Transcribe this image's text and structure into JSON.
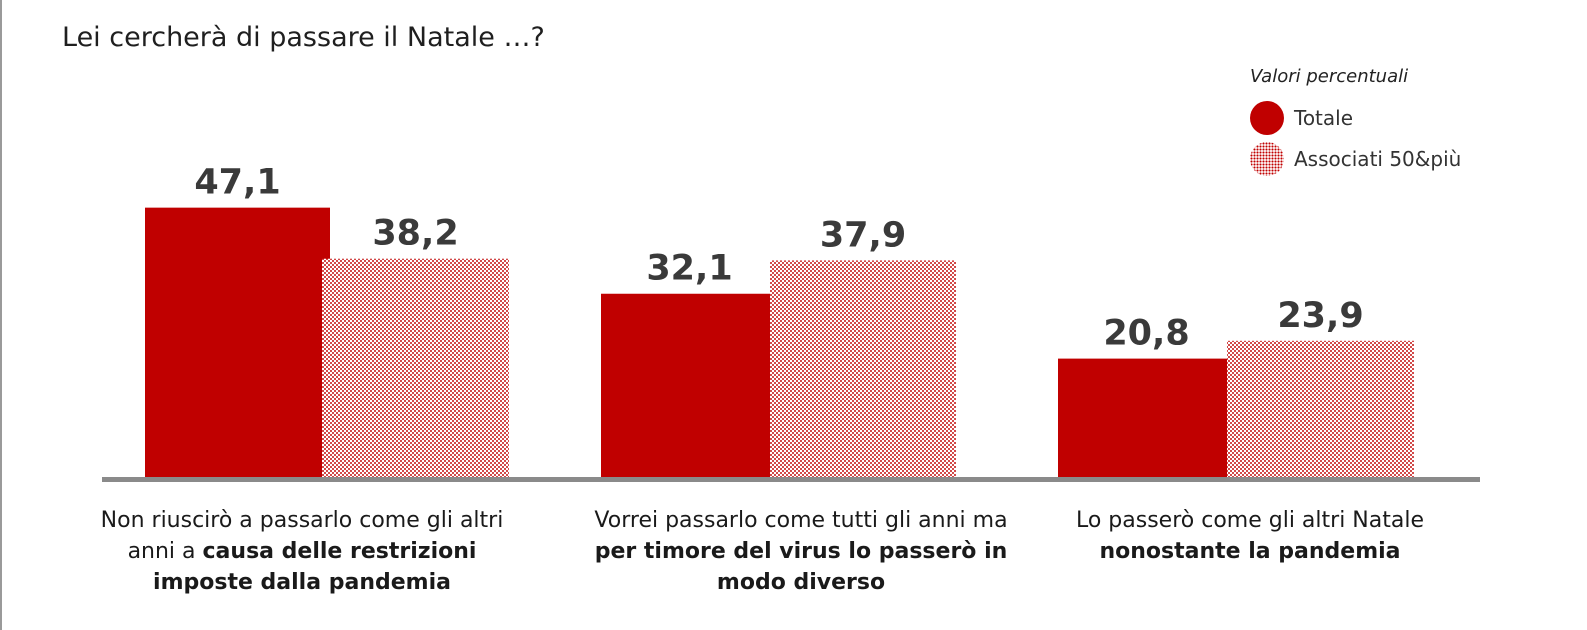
{
  "title": "Lei cercherà di passare il Natale …?",
  "legend": {
    "caption": "Valori percentuali",
    "items": [
      {
        "label": "Totale",
        "color": "#c00000",
        "style": "solid"
      },
      {
        "label": "Associati 50&più",
        "color": "#c00000",
        "style": "dotted"
      }
    ]
  },
  "categories": [
    {
      "text": "Non riuscirò a passarlo come gli altri anni a ",
      "bold": "causa delle restrizioni imposte dalla pandemia"
    },
    {
      "text": "Vorrei passarlo come tutti gli anni ma ",
      "bold": "per timore del virus lo passerò in modo diverso"
    },
    {
      "text": "Lo passerò come gli altri Natale ",
      "bold": "nonostante la pandemia"
    }
  ],
  "chart_data": {
    "type": "bar",
    "title": "Lei cercherà di passare il Natale …?",
    "categories": [
      "Non riuscirò a passarlo come gli altri anni a causa delle restrizioni imposte dalla pandemia",
      "Vorrei passarlo come tutti gli anni ma per timore del virus lo passerò in modo diverso",
      "Lo passerò come gli altri Natale nonostante la pandemia"
    ],
    "series": [
      {
        "name": "Totale",
        "values": [
          47.1,
          32.1,
          20.8
        ],
        "labels": [
          "47,1",
          "32,1",
          "20,8"
        ],
        "color": "#c00000"
      },
      {
        "name": "Associati 50&più",
        "values": [
          38.2,
          37.9,
          23.9
        ],
        "labels": [
          "38,2",
          "37,9",
          "23,9"
        ],
        "color": "#c00000"
      }
    ],
    "ylim": [
      0,
      55
    ],
    "grid": false,
    "legend_position": "top-right",
    "value_unit": "Valori percentuali"
  }
}
